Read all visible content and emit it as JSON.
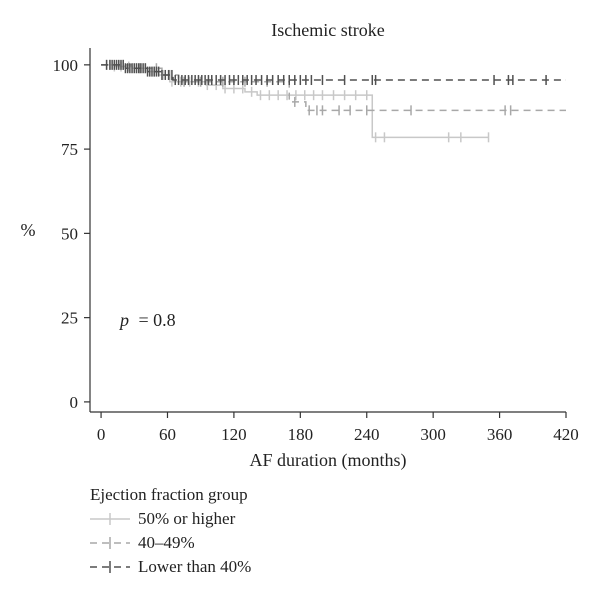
{
  "chart_data": {
    "type": "line",
    "subtype": "kaplan-meier",
    "title": "Ischemic stroke",
    "xlabel": "AF duration (months)",
    "ylabel": "%",
    "xlim": [
      -10,
      420
    ],
    "ylim": [
      -3,
      105
    ],
    "xticks": [
      0,
      60,
      120,
      180,
      240,
      300,
      360,
      420
    ],
    "yticks": [
      0,
      25,
      50,
      75,
      100
    ],
    "annotation": {
      "p_label": "p",
      "p_value": "= 0.8"
    },
    "legend_title": "Ejection fraction group",
    "series": [
      {
        "name": "50% or higher",
        "color": "#c8c8c8",
        "dash": "solid",
        "steps": [
          [
            0,
            100
          ],
          [
            12,
            99.5
          ],
          [
            28,
            99
          ],
          [
            42,
            98
          ],
          [
            52,
            97
          ],
          [
            62,
            95
          ],
          [
            95,
            94
          ],
          [
            110,
            93
          ],
          [
            130,
            92
          ],
          [
            141,
            91
          ],
          [
            245,
            78.5
          ],
          [
            350,
            78.5
          ]
        ],
        "censors": [
          5,
          12,
          18,
          25,
          32,
          40,
          48,
          56,
          64,
          72,
          80,
          88,
          96,
          104,
          112,
          120,
          128,
          136,
          144,
          152,
          160,
          168,
          176,
          184,
          192,
          200,
          210,
          220,
          230,
          240,
          248,
          256,
          314,
          325,
          350
        ]
      },
      {
        "name": "40–49%",
        "color": "#a8a8a8",
        "dash": "dashed",
        "steps": [
          [
            0,
            100
          ],
          [
            30,
            99
          ],
          [
            55,
            97
          ],
          [
            70,
            95
          ],
          [
            170,
            89
          ],
          [
            185,
            86.5
          ],
          [
            420,
            86.5
          ]
        ],
        "censors": [
          8,
          20,
          35,
          50,
          62,
          75,
          90,
          110,
          130,
          150,
          175,
          188,
          195,
          200,
          215,
          225,
          240,
          280,
          365,
          370
        ]
      },
      {
        "name": "Lower than 40%",
        "color": "#505050",
        "dash": "dashed",
        "steps": [
          [
            0,
            100
          ],
          [
            22,
            99
          ],
          [
            42,
            98
          ],
          [
            55,
            97
          ],
          [
            65,
            95.5
          ],
          [
            420,
            95.5
          ]
        ],
        "censors": [
          5,
          8,
          10,
          12,
          14,
          16,
          18,
          20,
          22,
          24,
          26,
          28,
          30,
          32,
          34,
          36,
          38,
          40,
          42,
          44,
          46,
          48,
          50,
          52,
          55,
          58,
          61,
          64,
          67,
          70,
          73,
          76,
          79,
          82,
          85,
          88,
          91,
          94,
          97,
          100,
          104,
          108,
          112,
          116,
          120,
          124,
          128,
          132,
          136,
          140,
          145,
          150,
          155,
          160,
          165,
          170,
          175,
          180,
          185,
          190,
          200,
          220,
          245,
          248,
          355,
          368,
          372,
          402
        ]
      }
    ]
  }
}
